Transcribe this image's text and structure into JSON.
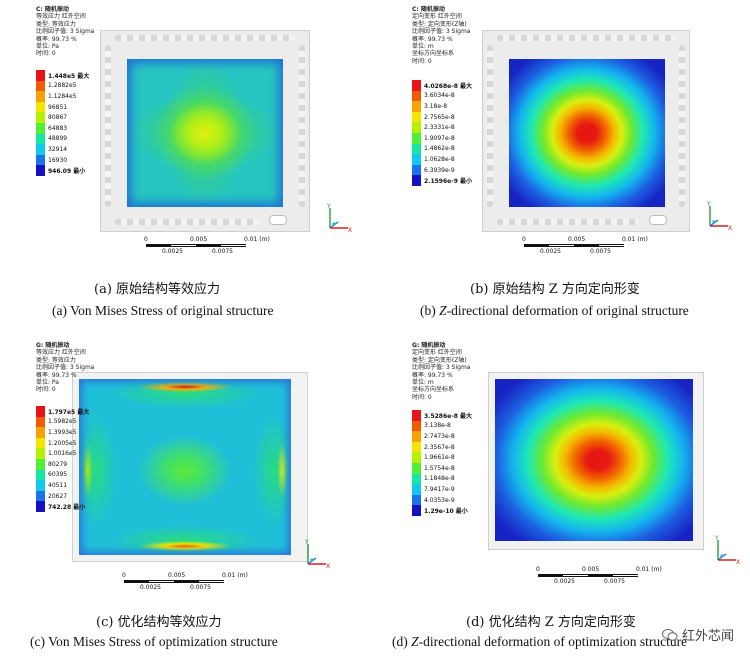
{
  "panels": {
    "a": {
      "info": [
        "C: 随机振动",
        "等效应力 红外空间",
        "类型: 等效应力",
        "比例因子值: 3 Sigma",
        "概率: 99.73 %",
        "单位: Pa",
        "时间: 0"
      ],
      "legend": [
        "1.448e5 最大",
        "1.2882e5",
        "1.1284e5",
        "96851",
        "80867",
        "64883",
        "48899",
        "32914",
        "16930",
        "946.09 最小"
      ],
      "scale_ticks": [
        "0",
        "0.005",
        "0.01 (m)"
      ],
      "scale_ticks_sub": [
        "0.0025",
        "0.0075"
      ],
      "caption_cn": "(a)  原始结构等效应力",
      "caption_en": "(a) Von Mises Stress of original structure"
    },
    "b": {
      "info": [
        "C: 随机振动",
        "定向变形 红外空间",
        "类型: 定向变形(Z轴)",
        "比例因子值: 3 Sigma",
        "概率: 99.73 %",
        "单位: m",
        "坐标方向坐标系",
        "时间: 0"
      ],
      "legend": [
        "4.0268e-8 最大",
        "3.6034e-8",
        "3.18e-8",
        "2.7565e-8",
        "2.3331e-8",
        "1.9097e-8",
        "1.4862e-8",
        "1.0628e-8",
        "6.3939e-9",
        "2.1596e-9 最小"
      ],
      "scale_ticks": [
        "0",
        "0.005",
        "0.01 (m)"
      ],
      "scale_ticks_sub": [
        "0.0025",
        "0.0075"
      ],
      "caption_cn": "(b)  原始结构 Z 方向定向形变",
      "caption_en_prefix": "(b) ",
      "caption_en_italic": "Z",
      "caption_en_rest": "-directional deformation of original structure"
    },
    "c": {
      "info": [
        "G: 随机振动",
        "等效应力 红外空间",
        "类型: 等效应力",
        "比例因子值: 3 Sigma",
        "概率: 99.73 %",
        "单位: Pa",
        "时间: 0"
      ],
      "legend": [
        "1.797e5 最大",
        "1.5982e5",
        "1.3993e5",
        "1.2005e5",
        "1.0016e5",
        "80279",
        "60395",
        "40511",
        "20627",
        "742.28 最小"
      ],
      "scale_ticks": [
        "0",
        "0.005",
        "0.01 (m)"
      ],
      "scale_ticks_sub": [
        "0.0025",
        "0.0075"
      ],
      "caption_cn": "(c)  优化结构等效应力",
      "caption_en": "(c) Von Mises Stress of optimization structure"
    },
    "d": {
      "info": [
        "G: 随机振动",
        "定向变形 红外空间",
        "类型: 定向变形(Z轴)",
        "比例因子值: 3 Sigma",
        "概率: 99.73 %",
        "单位: m",
        "坐标方向坐标系",
        "时间: 0"
      ],
      "legend": [
        "3.5286e-8 最大",
        "3.138e-8",
        "2.7473e-8",
        "2.3567e-8",
        "1.9661e-8",
        "1.5754e-8",
        "1.1848e-8",
        "7.9417e-9",
        "4.0353e-9",
        "1.29e-10 最小"
      ],
      "scale_ticks": [
        "0",
        "0.005",
        "0.01 (m)"
      ],
      "scale_ticks_sub": [
        "0.0025",
        "0.0075"
      ],
      "caption_cn": "(d)  优化结构 Z 方向定向形变",
      "caption_en_prefix": "(d) ",
      "caption_en_italic": "Z",
      "caption_en_rest": "-directional deformation of optimization structure"
    }
  },
  "axis_labels": {
    "x": "X",
    "y": "Y",
    "z": "Z"
  },
  "legend_colors": [
    "#e8141a",
    "#f05a00",
    "#f5a300",
    "#f2e600",
    "#b5f000",
    "#4fef3a",
    "#17e7a4",
    "#13c8ef",
    "#1a73e8",
    "#1512c4"
  ],
  "watermark": "红外芯闻"
}
